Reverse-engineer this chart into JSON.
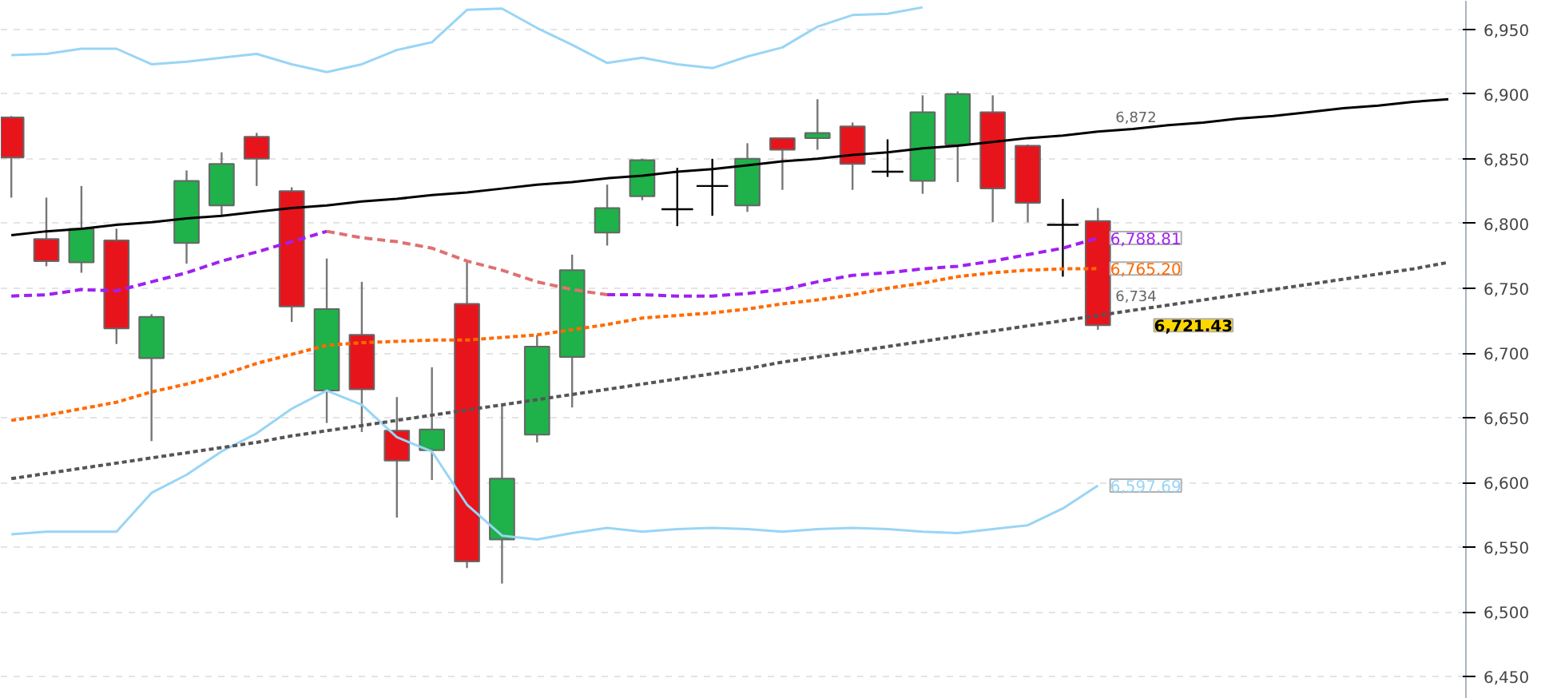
{
  "chart_data": {
    "type": "candlestick",
    "categories": [
      null,
      null,
      null,
      null,
      null,
      null,
      null,
      null,
      null,
      null,
      null,
      null,
      null,
      null,
      null,
      null,
      null,
      null,
      null,
      null,
      null,
      null,
      null,
      null,
      null,
      null,
      null,
      null,
      null,
      null,
      null,
      null,
      null,
      null,
      null,
      null,
      null,
      null,
      null,
      null,
      null,
      null
    ],
    "ohlc": [
      [
        6882,
        6883,
        6820,
        6851
      ],
      [
        6788,
        6820,
        6767,
        6771
      ],
      [
        6770,
        6829,
        6762,
        6796
      ],
      [
        6787,
        6796,
        6707,
        6719
      ],
      [
        6696,
        6730,
        6632,
        6728
      ],
      [
        6785,
        6841,
        6769,
        6833
      ],
      [
        6814,
        6855,
        6806,
        6846
      ],
      [
        6867,
        6870,
        6829,
        6850
      ],
      [
        6825,
        6828,
        6724,
        6736
      ],
      [
        6671,
        6773,
        6646,
        6734
      ],
      [
        6714,
        6755,
        6639,
        6672
      ],
      [
        6640,
        6666,
        6573,
        6617
      ],
      [
        6625,
        6689,
        6602,
        6641
      ],
      [
        6738,
        6770,
        6534,
        6539
      ],
      [
        6556,
        6660,
        6522,
        6603
      ],
      [
        6637,
        6714,
        6631,
        6705
      ],
      [
        6697,
        6776,
        6658,
        6764
      ],
      [
        6793,
        6830,
        6783,
        6812
      ],
      [
        6821,
        6850,
        6818,
        6849
      ],
      [
        6811,
        6843,
        6798,
        6811
      ],
      [
        6829,
        6850,
        6806,
        6829
      ],
      [
        6814,
        6862,
        6809,
        6850
      ],
      [
        6866,
        6866,
        6826,
        6857
      ],
      [
        6866,
        6896,
        6857,
        6870
      ],
      [
        6875,
        6878,
        6826,
        6846
      ],
      [
        6840,
        6865,
        6836,
        6840
      ],
      [
        6833,
        6899,
        6823,
        6886
      ],
      [
        6861,
        6902,
        6832,
        6900
      ],
      [
        6886,
        6899,
        6801,
        6827
      ],
      [
        6860,
        6861,
        6801,
        6816
      ],
      [
        6799,
        6819,
        6759,
        6799
      ],
      [
        6802,
        6812,
        6718,
        6721.43
      ],
      null,
      null,
      null,
      null,
      null,
      null,
      null,
      null,
      null,
      null
    ],
    "colors": [
      "#e8141c",
      "#e8141c",
      "#1fb14a",
      "#e8141c",
      "#1fb14a",
      "#1fb14a",
      "#1fb14a",
      "#e8141c",
      "#e8141c",
      "#1fb14a",
      "#e8141c",
      "#e8141c",
      "#1fb14a",
      "#e8141c",
      "#1fb14a",
      "#1fb14a",
      "#1fb14a",
      "#1fb14a",
      "#1fb14a",
      "#000000",
      "#000000",
      "#1fb14a",
      "#e8141c",
      "#1fb14a",
      "#e8141c",
      "#000000",
      "#1fb14a",
      "#1fb14a",
      "#e8141c",
      "#e8141c",
      "#000000",
      "#e8141c",
      null,
      null,
      null,
      null,
      null,
      null,
      null,
      null,
      null,
      null
    ],
    "series": [
      {
        "type": "line",
        "color": "#99d5f5",
        "line_style": "solid",
        "values": [
          6930,
          6931,
          6935,
          6935,
          6923,
          6925,
          6928,
          6931,
          6923,
          6917,
          6923,
          6934,
          6940,
          6965,
          6966,
          6951,
          6938,
          6924,
          6928,
          6923,
          6920,
          6929,
          6936,
          6952,
          6961,
          6962,
          6967,
          null,
          null,
          null,
          null,
          null,
          null,
          null,
          null,
          null,
          null,
          null,
          null,
          null,
          null,
          null
        ]
      },
      {
        "type": "line",
        "color": "#99d5f5",
        "line_style": "solid",
        "values": [
          6560,
          6562,
          6562,
          6562,
          6592,
          6606,
          6624,
          6638,
          6657,
          6671,
          6660,
          6635,
          6624,
          6583,
          6559,
          6556,
          6561,
          6565,
          6562,
          6564,
          6565,
          6564,
          6562,
          6564,
          6565,
          6564,
          6562,
          6561,
          6564,
          6567,
          6580,
          6597.69,
          null,
          null,
          null,
          null,
          null,
          null,
          null,
          null,
          null,
          null
        ],
        "value_labels": [
          null,
          null,
          null,
          null,
          null,
          null,
          null,
          null,
          null,
          null,
          null,
          null,
          null,
          null,
          null,
          null,
          null,
          null,
          null,
          null,
          null,
          null,
          null,
          null,
          null,
          null,
          null,
          null,
          null,
          null,
          null,
          "6,597.69",
          null,
          null,
          null,
          null,
          null,
          null,
          null,
          null,
          null,
          null
        ]
      },
      {
        "type": "line",
        "color": "#a020f0",
        "line_style": "dashed",
        "values": [
          6744,
          6745,
          6749,
          6748,
          6755,
          6762,
          6771,
          6778,
          6786,
          6794,
          null,
          null,
          null,
          null,
          null,
          null,
          null,
          6745,
          6745,
          6744,
          6744,
          6746,
          6749,
          6755,
          6760,
          6762,
          6765,
          6767,
          6771,
          6776,
          6781,
          6788.81,
          null,
          null,
          null,
          null,
          null,
          null,
          null,
          null,
          null,
          null
        ],
        "value_labels": [
          null,
          null,
          null,
          null,
          null,
          null,
          null,
          null,
          null,
          null,
          null,
          null,
          null,
          null,
          null,
          null,
          null,
          null,
          null,
          null,
          null,
          null,
          null,
          null,
          null,
          null,
          null,
          null,
          null,
          null,
          null,
          "6,788.81",
          null,
          null,
          null,
          null,
          null,
          null,
          null,
          null,
          null,
          null
        ]
      },
      {
        "type": "line",
        "color": "#e07070",
        "line_style": "dashed",
        "values": [
          null,
          null,
          null,
          null,
          null,
          null,
          null,
          null,
          null,
          6794,
          6789,
          6786,
          6781,
          6771,
          6764,
          6755,
          6749,
          6745,
          null,
          null,
          null,
          null,
          null,
          null,
          null,
          null,
          null,
          null,
          null,
          null,
          null,
          null,
          null,
          null,
          null,
          null,
          null,
          null,
          null,
          null,
          null,
          null
        ]
      },
      {
        "type": "line",
        "color": "#ff6a00",
        "line_style": "dotted",
        "values": [
          6648,
          6652,
          6657,
          6662,
          6670,
          6676,
          6683,
          6692,
          6699,
          6706,
          6708,
          6709,
          6710,
          6710,
          6712,
          6714,
          6718,
          6722,
          6727,
          6729,
          6731,
          6734,
          6738,
          6741,
          6745,
          6750,
          6754,
          6759,
          6762,
          6764,
          6765,
          6765.2,
          null,
          null,
          null,
          null,
          null,
          null,
          null,
          null,
          null,
          null
        ],
        "value_labels": [
          null,
          null,
          null,
          null,
          null,
          null,
          null,
          null,
          null,
          null,
          null,
          null,
          null,
          null,
          null,
          null,
          null,
          null,
          null,
          null,
          null,
          null,
          null,
          null,
          null,
          null,
          null,
          null,
          null,
          null,
          null,
          "6,765.20",
          null,
          null,
          null,
          null,
          null,
          null,
          null,
          null,
          null,
          null
        ]
      },
      {
        "type": "line",
        "color": "#000000",
        "line_style": "solid",
        "values": [
          6791,
          6794,
          6796,
          6799,
          6801,
          6804,
          6806,
          6809,
          6812,
          6814,
          6817,
          6819,
          6822,
          6824,
          6827,
          6830,
          6832,
          6835,
          6837,
          6840,
          6842,
          6845,
          6848,
          6850,
          6853,
          6855,
          6858,
          6860,
          6863,
          6866,
          6868,
          6871,
          6873,
          6876,
          6878,
          6881,
          6883,
          6886,
          6889,
          6891,
          6894,
          6896
        ]
      },
      {
        "type": "line",
        "color": "#555555",
        "line_style": "dotted",
        "values": [
          6603,
          6607,
          6611,
          6615,
          6619,
          6623,
          6627,
          6631,
          6636,
          6640,
          6644,
          6648,
          6652,
          6656,
          6660,
          6664,
          6668,
          6672,
          6676,
          6680,
          6684,
          6688,
          6693,
          6697,
          6701,
          6705,
          6709,
          6713,
          6717,
          6721,
          6725,
          6729,
          6733,
          6737,
          6741,
          6745,
          6749,
          6753,
          6757,
          6761,
          6765,
          6770
        ]
      }
    ],
    "value_labels": [
      null,
      null,
      null,
      null,
      null,
      null,
      null,
      null,
      null,
      null,
      null,
      null,
      null,
      null,
      null,
      null,
      null,
      null,
      null,
      null,
      null,
      null,
      null,
      null,
      null,
      null,
      null,
      null,
      null,
      null,
      null,
      "6,721.43",
      null,
      null,
      null,
      null,
      null,
      null,
      null,
      null,
      null,
      null
    ],
    "annotations": [
      {
        "text": "6,872",
        "y": 6872
      },
      {
        "text": "6,734",
        "y": 6734
      }
    ],
    "ylim": [
      6433,
      6972
    ],
    "yticks": [
      {
        "value": 6450,
        "label": "6,450"
      },
      {
        "value": 6500,
        "label": "6,500"
      },
      {
        "value": 6550,
        "label": "6,550"
      },
      {
        "value": 6600,
        "label": "6,600"
      },
      {
        "value": 6650,
        "label": "6,650"
      },
      {
        "value": 6700,
        "label": "6,700"
      },
      {
        "value": 6750,
        "label": "6,750"
      },
      {
        "value": 6800,
        "label": "6,800"
      },
      {
        "value": 6850,
        "label": "6,850"
      },
      {
        "value": 6900,
        "label": "6,900"
      },
      {
        "value": 6950,
        "label": "6,950"
      }
    ],
    "tick_labels": "y",
    "grid": "y"
  }
}
